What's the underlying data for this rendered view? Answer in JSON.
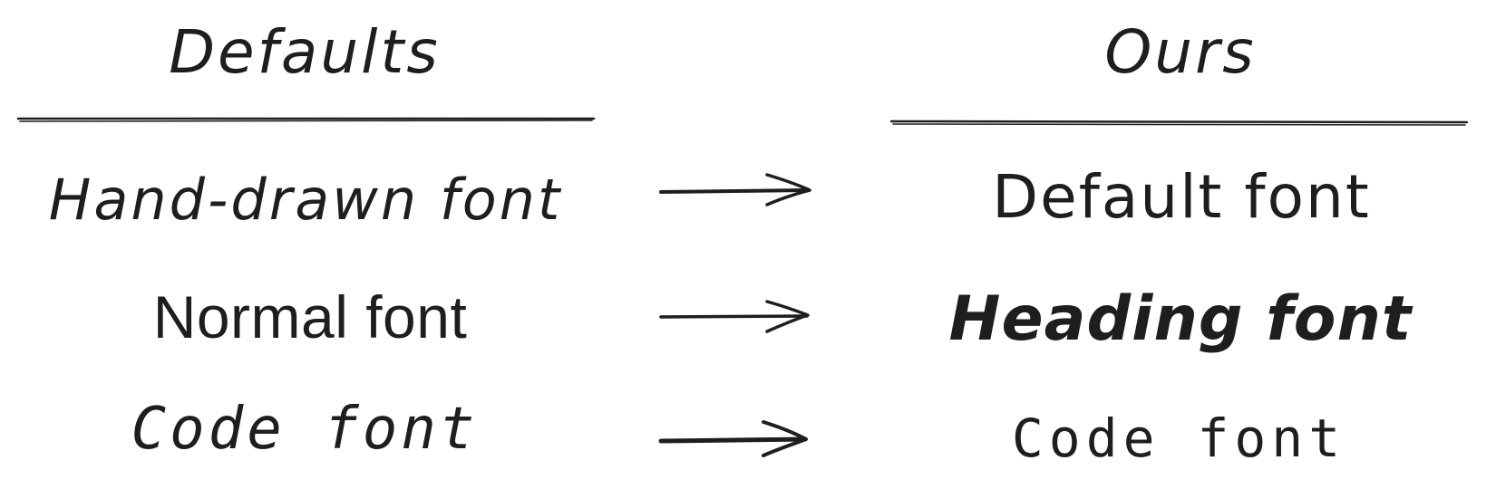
{
  "columns": {
    "left_header": "Defaults",
    "right_header": "Ours"
  },
  "rows": [
    {
      "left": "Hand-drawn font",
      "right": "Default font"
    },
    {
      "left": "Normal font",
      "right": "Heading font"
    },
    {
      "left": "Code font",
      "right": "Code font"
    }
  ],
  "icons": {
    "arrow": "right-arrow-icon"
  },
  "colors": {
    "ink": "#1e1e1e",
    "background": "#ffffff"
  }
}
